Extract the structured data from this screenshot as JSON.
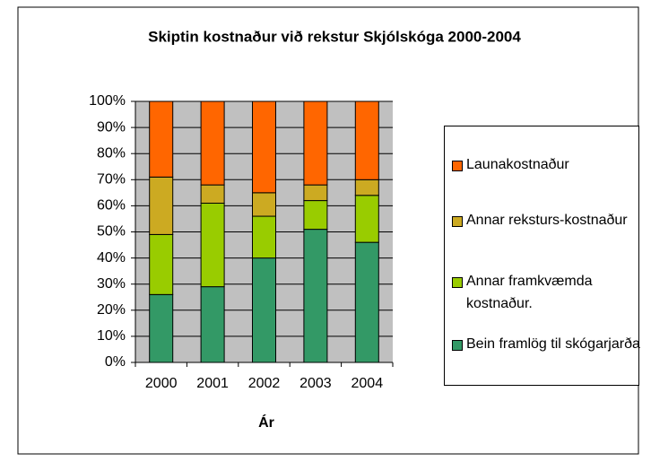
{
  "chart_data": {
    "type": "stacked_bar",
    "title": "Skiptin kostnaður við rekstur Skjólskóga 2000-2004",
    "xlabel": "Ár",
    "categories": [
      "2000",
      "2001",
      "2002",
      "2003",
      "2004"
    ],
    "series": [
      {
        "name": "Bein framlög til skógarjarða",
        "color": "#339966",
        "values": [
          26,
          29,
          40,
          51,
          46
        ]
      },
      {
        "name": "Annar framkvæmda kostnaður.",
        "color": "#99cc00",
        "values": [
          23,
          32,
          16,
          11,
          18
        ]
      },
      {
        "name": "Annar reksturs-kostnaður",
        "color": "#ccaa22",
        "values": [
          22,
          7,
          9,
          6,
          6
        ]
      },
      {
        "name": "Launakostnaður",
        "color": "#ff6600",
        "values": [
          29,
          32,
          35,
          32,
          30
        ]
      }
    ],
    "ylim": [
      0,
      100
    ],
    "yticks": [
      {
        "value": 0,
        "label": "0%"
      },
      {
        "value": 10,
        "label": "10%"
      },
      {
        "value": 20,
        "label": "20%"
      },
      {
        "value": 30,
        "label": "30%"
      },
      {
        "value": 40,
        "label": "40%"
      },
      {
        "value": 50,
        "label": "50%"
      },
      {
        "value": 60,
        "label": "60%"
      },
      {
        "value": 70,
        "label": "70%"
      },
      {
        "value": 80,
        "label": "80%"
      },
      {
        "value": 90,
        "label": "90%"
      },
      {
        "value": 100,
        "label": "100%"
      }
    ],
    "grid": true
  }
}
